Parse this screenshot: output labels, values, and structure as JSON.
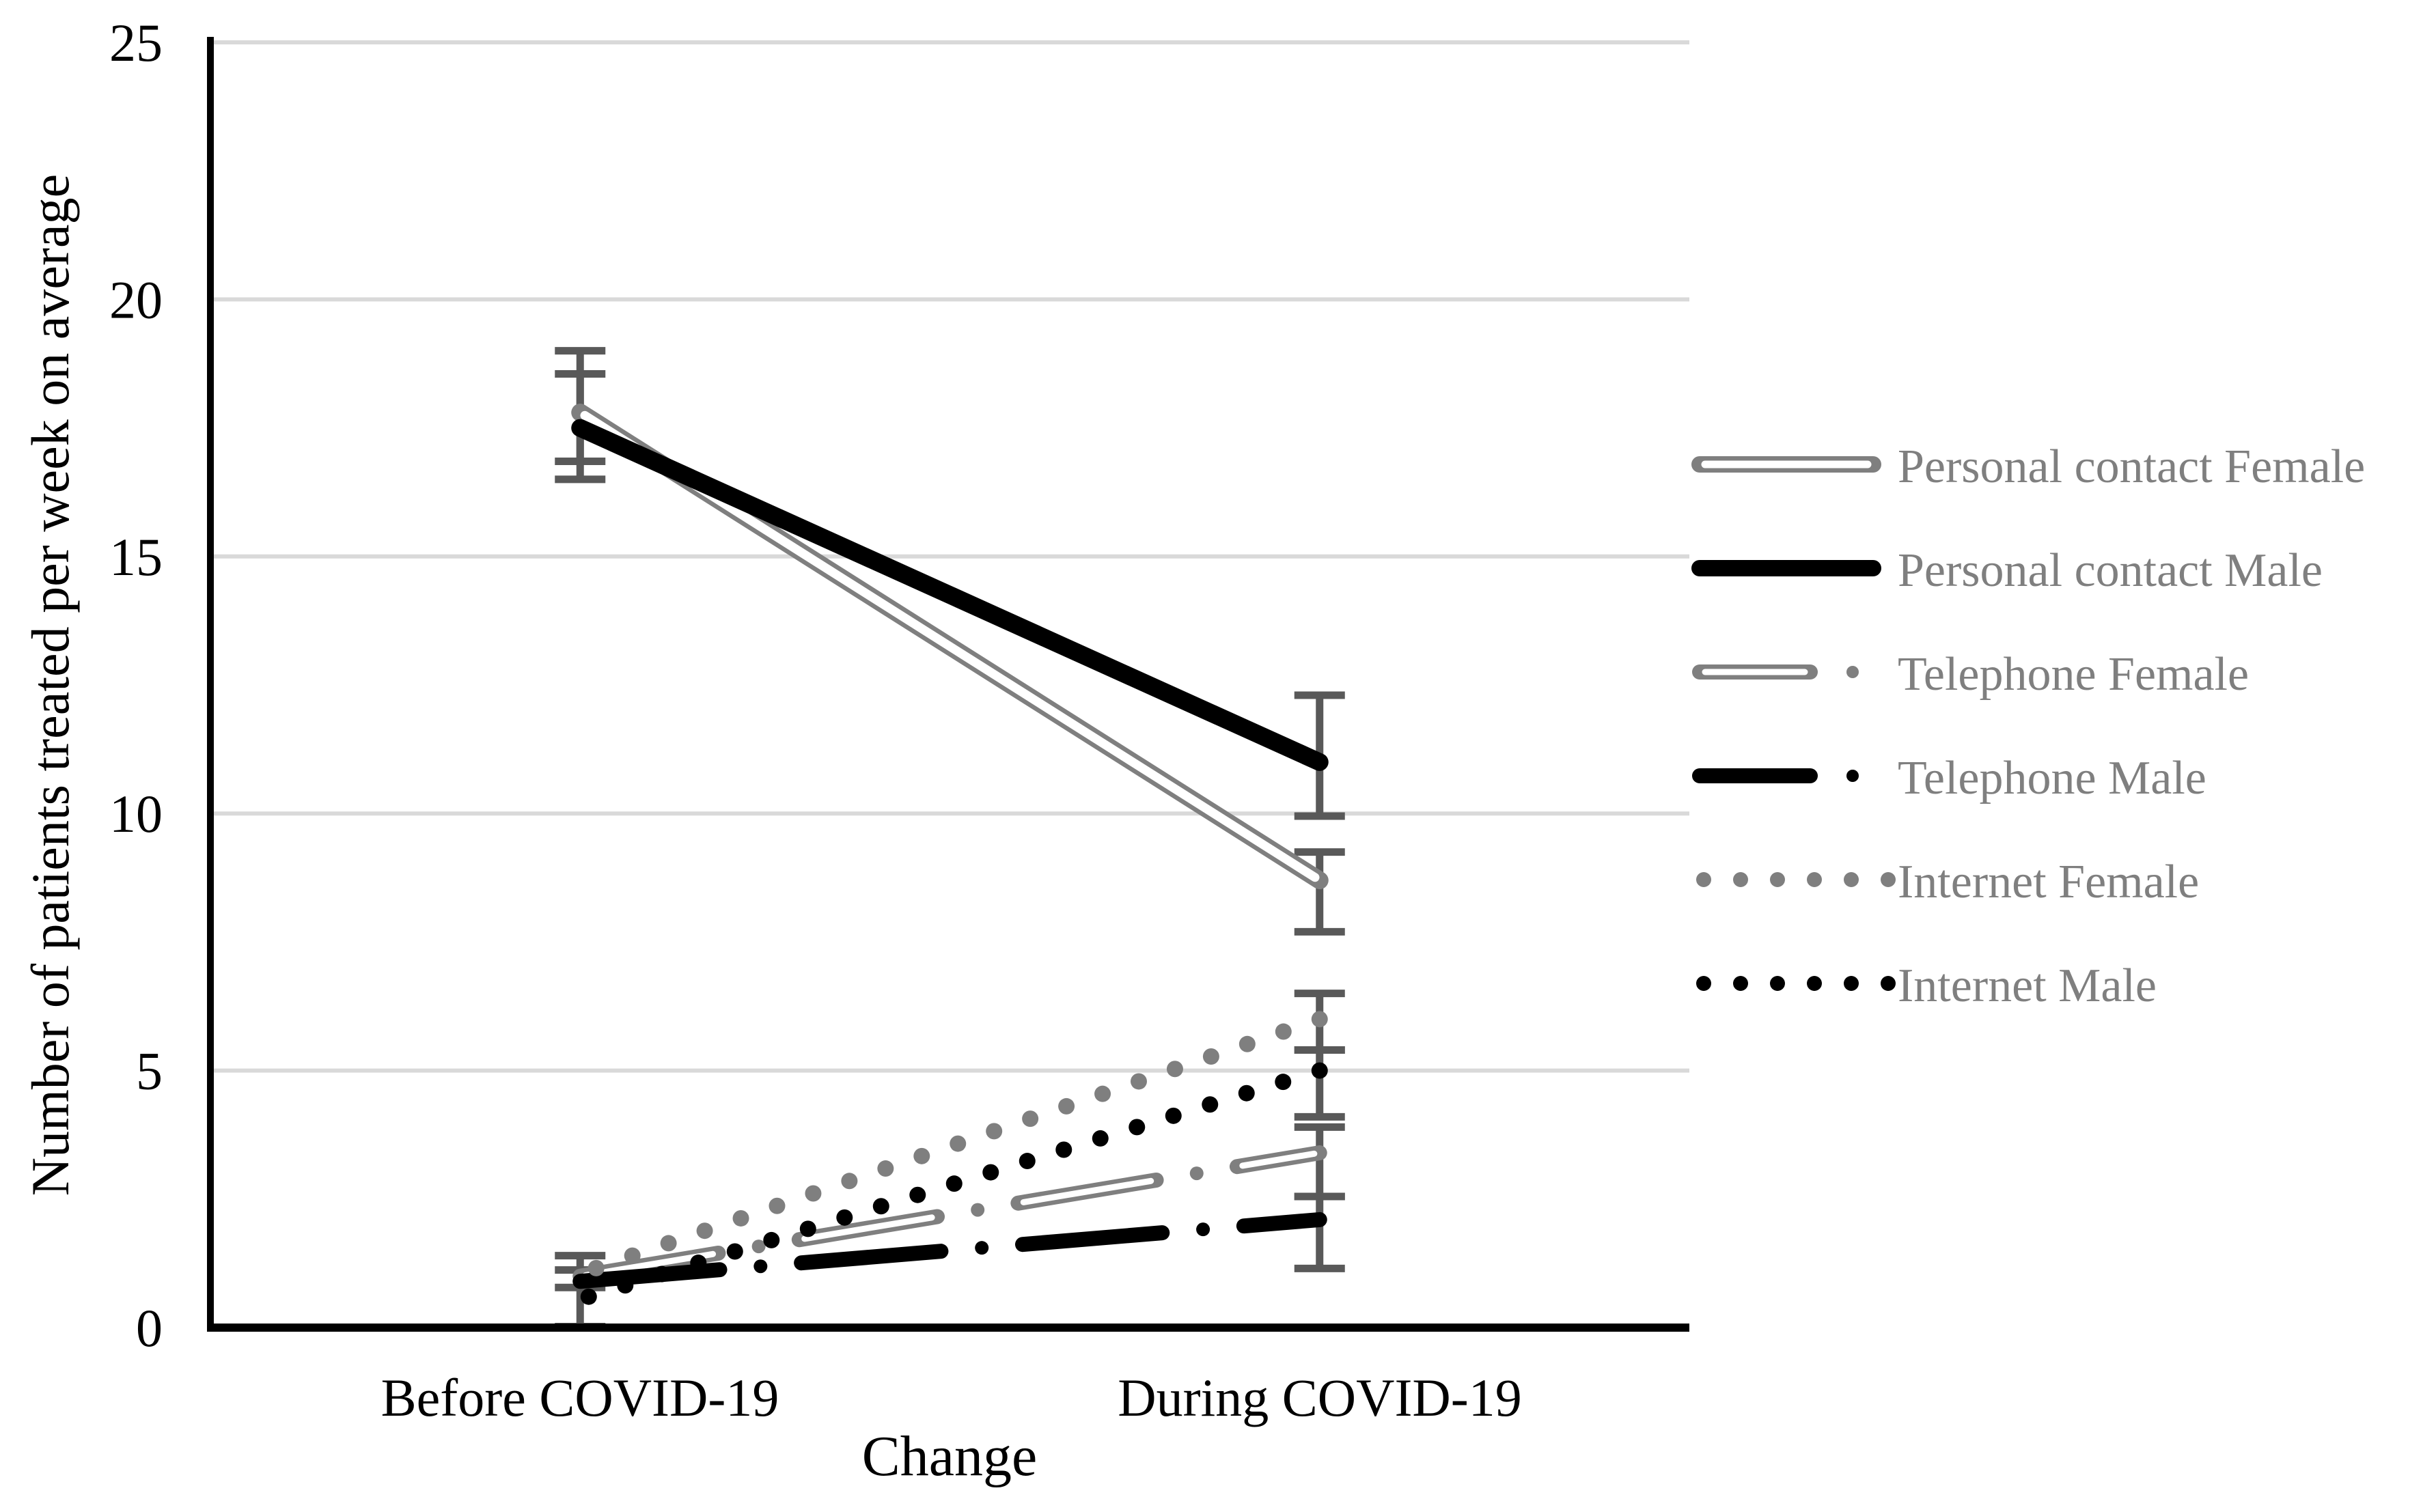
{
  "page": {
    "background": "#ffffff"
  },
  "chart_data": {
    "type": "line",
    "title": "",
    "xlabel": "Change",
    "ylabel": "Number of patients treated per week on average",
    "categories": [
      "Before COVID-19",
      "During COVID-19"
    ],
    "ylim": [
      0,
      25
    ],
    "yticks": [
      0,
      5,
      10,
      15,
      20,
      25
    ],
    "grid": "horizontal",
    "legend_position": "right",
    "colors": {
      "female_gray": "#7f7f7f",
      "male_black": "#000000",
      "error_bar": "#595959",
      "gridline": "#d9d9d9",
      "axis": "#000000",
      "legend_text": "#7f7f7f",
      "tick_text": "#000000",
      "background": "#ffffff"
    },
    "series": [
      {
        "name": "Personal contact Female",
        "color": "#7f7f7f",
        "style": "tube-solid",
        "values": [
          17.8,
          8.7
        ]
      },
      {
        "name": "Personal contact Male",
        "color": "#000000",
        "style": "solid",
        "values": [
          17.5,
          11.0
        ]
      },
      {
        "name": "Telephone Female",
        "color": "#7f7f7f",
        "style": "tube-dash-dot",
        "values": [
          1.0,
          3.4
        ]
      },
      {
        "name": "Telephone Male",
        "color": "#000000",
        "style": "dash-dot",
        "values": [
          0.9,
          2.1
        ]
      },
      {
        "name": "Internet Female",
        "color": "#7f7f7f",
        "style": "dots",
        "values": [
          1.05,
          6.0
        ]
      },
      {
        "name": "Internet Male",
        "color": "#000000",
        "style": "dots",
        "values": [
          0.55,
          5.0
        ]
      }
    ],
    "error_bars": [
      {
        "category": 0,
        "top": 19.0,
        "bottom": 16.85
      },
      {
        "category": 0,
        "top": 18.55,
        "bottom": 16.5
      },
      {
        "category": 0,
        "top": 1.4,
        "bottom": 0.78
      },
      {
        "category": 0,
        "top": 1.12,
        "bottom": 0.02
      },
      {
        "category": 1,
        "top": 12.3,
        "bottom": 9.95
      },
      {
        "category": 1,
        "top": 9.25,
        "bottom": 7.7
      },
      {
        "category": 1,
        "top": 6.5,
        "bottom": 5.4
      },
      {
        "category": 1,
        "top": 5.4,
        "bottom": 4.1
      },
      {
        "category": 1,
        "top": 3.9,
        "bottom": 2.55
      },
      {
        "category": 1,
        "top": 2.55,
        "bottom": 1.15
      }
    ]
  }
}
